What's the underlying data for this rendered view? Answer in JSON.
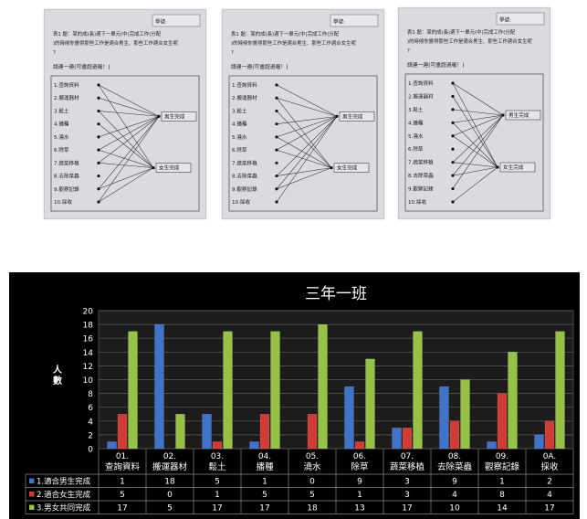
{
  "worksheets": [
    {
      "stamp": "學號:",
      "instructions": "表1 題：某的成(長)適下一單元(中)完成工作(分配)的時候你覺得那些工作是適合男生、那些工作適合女生呢?",
      "prompt": "請連一連(可畫超過喔！)",
      "tasks": [
        "1.查詢資料",
        "2.搬運器材",
        "3.鬆土",
        "4.播種",
        "5.澆水",
        "6.除草",
        "7.蔬菜移植",
        "8.去除菜蟲",
        "9.觀察記錄",
        "10.採收"
      ],
      "targets": [
        "男生完成",
        "女生完成"
      ]
    },
    {
      "stamp": "學號:",
      "instructions": "表1 題：某的成(長)適下一單元(中)完成工作(分配)的時候你覺得那些工作是適合男生、那些工作適合女生呢?",
      "prompt": "請連一連(可畫超過喔！)",
      "tasks": [
        "1.查詢資料",
        "2.搬運器材",
        "3.鬆土",
        "4.播種",
        "5.澆水",
        "6.除草",
        "7.蔬菜移植",
        "8.去除菜蟲",
        "9.觀察記錄",
        "10.採收"
      ],
      "targets": [
        "男生完成",
        "女生完成"
      ]
    },
    {
      "stamp": "學號:",
      "instructions": "表1 題：某的成(長)適下一單元(中)完成工作(分配)的時候你覺得那些工作是適合男生、那些工作適合女生呢?",
      "prompt": "請連一連(可畫超過喔！)",
      "tasks": [
        "1.查詢資料",
        "2.搬運器材",
        "3.鬆土",
        "4.播種",
        "5.澆水",
        "6.除草",
        "7.蔬菜移植",
        "8.去除菜蟲",
        "9.觀察記錄",
        "10.採收"
      ],
      "targets": [
        "男生完成",
        "女生完成"
      ]
    }
  ],
  "colors": {
    "blue": "#3f72c8",
    "red": "#d23a34",
    "green": "#98c246"
  },
  "chart_data": {
    "type": "bar",
    "title": "三年一班",
    "ylabel": "人數",
    "ylim": [
      0,
      20
    ],
    "yticks": [
      0,
      2,
      4,
      6,
      8,
      10,
      12,
      14,
      16,
      18,
      20
    ],
    "grid": true,
    "legend": "table-below",
    "categories": [
      [
        "01.",
        "查詢資料"
      ],
      [
        "02.",
        "搬運器材"
      ],
      [
        "03.",
        "鬆土"
      ],
      [
        "04.",
        "播種"
      ],
      [
        "05.",
        "澆水"
      ],
      [
        "06.",
        "除草"
      ],
      [
        "07.",
        "蔬菜移植"
      ],
      [
        "08.",
        "去除菜蟲"
      ],
      [
        "09.",
        "觀察記錄"
      ],
      [
        "0A.",
        "採收"
      ]
    ],
    "series": [
      {
        "name": "1.適合男生完成",
        "color": "#3f72c8",
        "values": [
          1,
          18,
          5,
          1,
          0,
          9,
          3,
          9,
          1,
          2
        ]
      },
      {
        "name": "2.適合女生完成",
        "color": "#d23a34",
        "values": [
          5,
          0,
          1,
          5,
          5,
          1,
          3,
          4,
          8,
          4
        ]
      },
      {
        "name": "3.男女共同完成",
        "color": "#98c246",
        "values": [
          17,
          5,
          17,
          17,
          18,
          13,
          17,
          10,
          14,
          17
        ]
      }
    ]
  }
}
